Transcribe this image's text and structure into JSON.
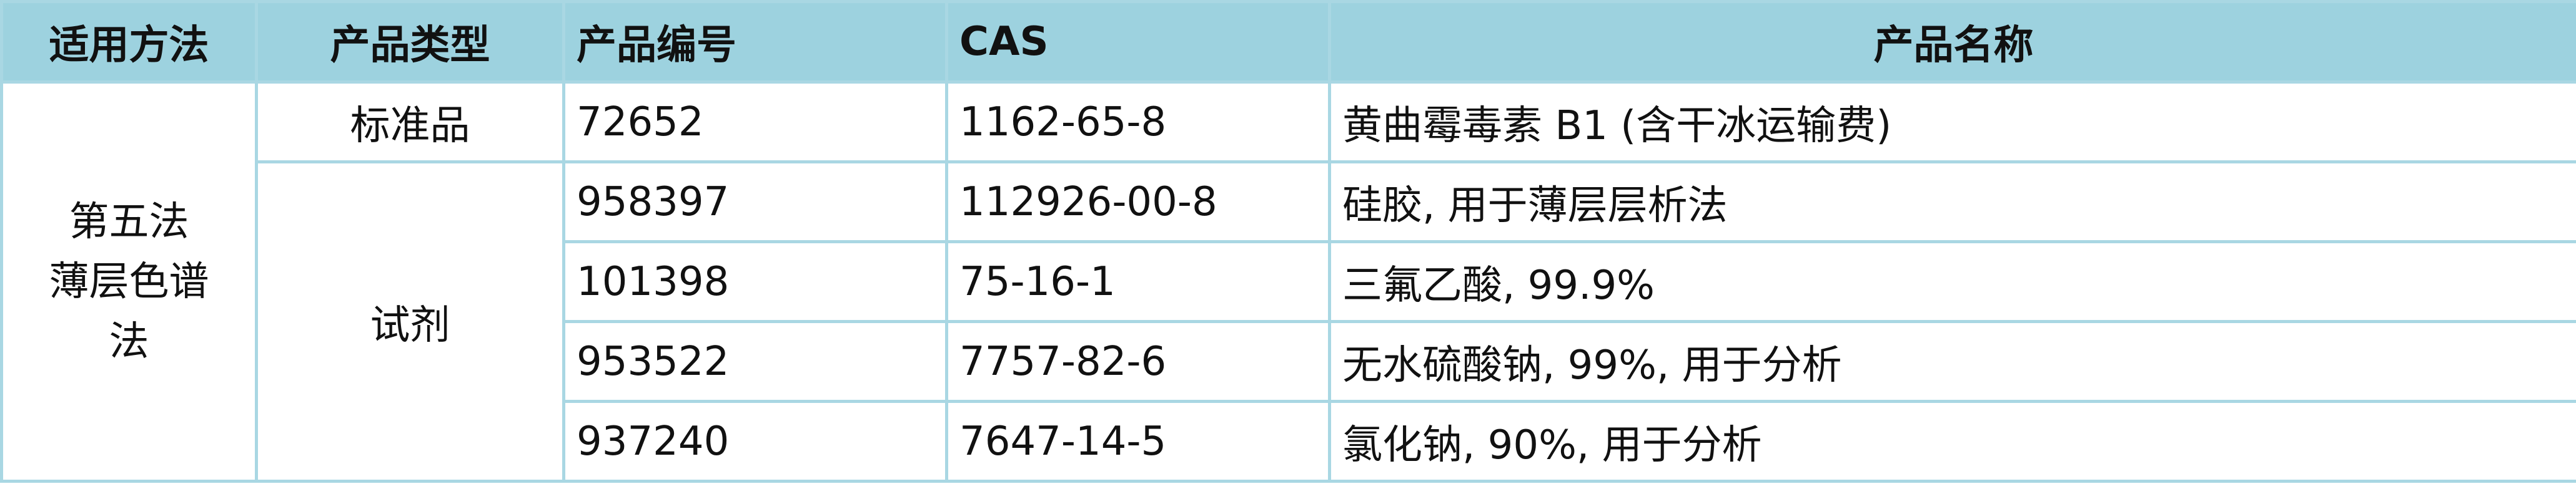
{
  "table": {
    "headers": [
      "适用方法",
      "产品类型",
      "产品编号",
      "CAS",
      "产品名称"
    ],
    "method_lines": [
      "第五法",
      "薄层色谱",
      "法"
    ],
    "groups": [
      {
        "type": "标准品",
        "rows": [
          [
            "72652",
            "1162-65-8",
            "黄曲霉毒素 B1 (含干冰运输费)"
          ]
        ]
      },
      {
        "type": "试剂",
        "rows": [
          [
            "958397",
            "112926-00-8",
            "硅胶, 用于薄层层析法"
          ],
          [
            "101398",
            "75-16-1",
            "三氟乙酸, 99.9%"
          ],
          [
            "953522",
            "7757-82-6",
            "无水硫酸钠, 99%, 用于分析"
          ],
          [
            "937240",
            "7647-14-5",
            "氯化钠, 90%, 用于分析"
          ]
        ]
      }
    ]
  }
}
